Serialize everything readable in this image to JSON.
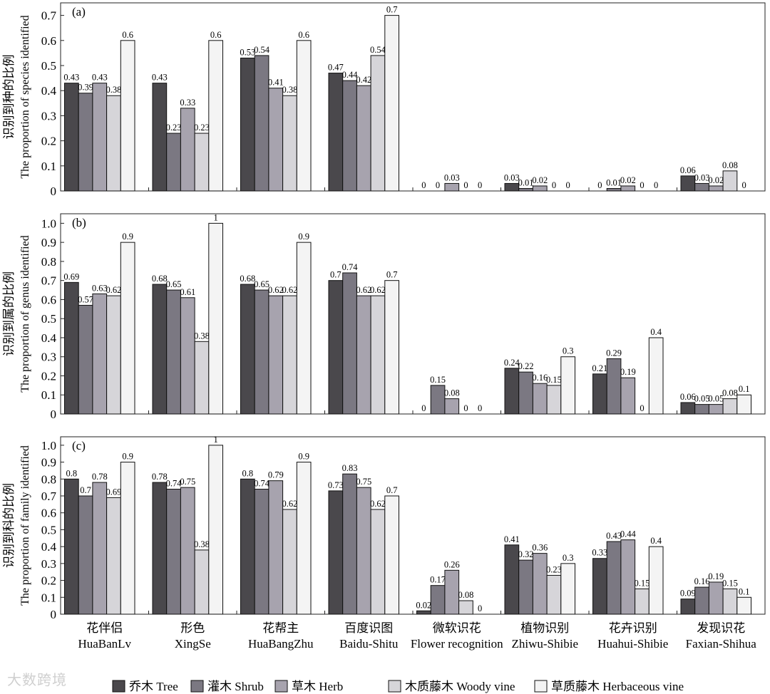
{
  "figure": {
    "categories_cn": [
      "花伴侣",
      "形色",
      "花帮主",
      "百度识图",
      "微软识花",
      "植物识别",
      "花卉识别",
      "发现识花"
    ],
    "categories_en": [
      "HuaBanLv",
      "XingSe",
      "HuaBangZhu",
      "Baidu-Shitu",
      "Flower recognition",
      "Zhiwu-Shibie",
      "Huahui-Shibie",
      "Faxian-Shihua"
    ],
    "legend": [
      {
        "label": "乔木 Tree",
        "color": "#4a484c"
      },
      {
        "label": "灌木 Shrub",
        "color": "#7b7882"
      },
      {
        "label": "草木 Herb",
        "color": "#a7a3ae"
      },
      {
        "label": "木质藤木 Woody vine",
        "color": "#d6d5d9"
      },
      {
        "label": "草质藤木 Herbaceous vine",
        "color": "#f4f4f4"
      }
    ],
    "watermark": "大数跨境"
  },
  "chart_data": [
    {
      "type": "bar",
      "panel": "(a)",
      "ylabel_cn": "识别到种的比例",
      "ylabel_en": "The proportion of species identified",
      "ylim": [
        0,
        0.75
      ],
      "yticks": [
        "0",
        "0.1",
        "0.2",
        "0.3",
        "0.4",
        "0.5",
        "0.6",
        "0.7"
      ],
      "series": [
        {
          "name": "乔木 Tree",
          "values": [
            0.43,
            0.43,
            0.53,
            0.47,
            0,
            0.03,
            0,
            0.06
          ]
        },
        {
          "name": "灌木 Shrub",
          "values": [
            0.39,
            0.23,
            0.54,
            0.44,
            0,
            0.01,
            0.01,
            0.03
          ]
        },
        {
          "name": "草木 Herb",
          "values": [
            0.43,
            0.33,
            0.41,
            0.42,
            0.03,
            0.02,
            0.02,
            0.02
          ]
        },
        {
          "name": "木质藤木 Woody vine",
          "values": [
            0.38,
            0.23,
            0.38,
            0.54,
            0,
            0,
            0,
            0.08
          ]
        },
        {
          "name": "草质藤木 Herbaceous vine",
          "values": [
            0.6,
            0.6,
            0.6,
            0.7,
            0,
            0,
            0,
            0
          ]
        }
      ]
    },
    {
      "type": "bar",
      "panel": "(b)",
      "ylabel_cn": "识别到属的比例",
      "ylabel_en": "The proportion of genus identified",
      "ylim": [
        0,
        1.05
      ],
      "yticks": [
        "0",
        "0.1",
        "0.2",
        "0.3",
        "0.4",
        "0.5",
        "0.6",
        "0.7",
        "0.8",
        "0.9",
        "1.0"
      ],
      "series": [
        {
          "name": "乔木 Tree",
          "values": [
            0.69,
            0.68,
            0.68,
            0.7,
            0,
            0.24,
            0.21,
            0.06
          ]
        },
        {
          "name": "灌木 Shrub",
          "values": [
            0.57,
            0.65,
            0.65,
            0.74,
            0.15,
            0.22,
            0.29,
            0.05
          ]
        },
        {
          "name": "草木 Herb",
          "values": [
            0.63,
            0.61,
            0.62,
            0.62,
            0.08,
            0.16,
            0.19,
            0.05
          ]
        },
        {
          "name": "木质藤木 Woody vine",
          "values": [
            0.62,
            0.38,
            0.62,
            0.62,
            0,
            0.15,
            0,
            0.08
          ]
        },
        {
          "name": "草质藤木 Herbaceous vine",
          "values": [
            0.9,
            1,
            0.9,
            0.7,
            0,
            0.3,
            0.4,
            0.1
          ]
        }
      ]
    },
    {
      "type": "bar",
      "panel": "(c)",
      "ylabel_cn": "识别到科的比例",
      "ylabel_en": "The proportion of family identified",
      "ylim": [
        0,
        1.05
      ],
      "yticks": [
        "0",
        "0.1",
        "0.2",
        "0.3",
        "0.4",
        "0.5",
        "0.6",
        "0.7",
        "0.8",
        "0.9",
        "1.0"
      ],
      "series": [
        {
          "name": "乔木 Tree",
          "values": [
            0.8,
            0.78,
            0.8,
            0.73,
            0.02,
            0.41,
            0.33,
            0.09
          ]
        },
        {
          "name": "灌木 Shrub",
          "values": [
            0.7,
            0.74,
            0.74,
            0.83,
            0.17,
            0.32,
            0.43,
            0.16
          ]
        },
        {
          "name": "草木 Herb",
          "values": [
            0.78,
            0.75,
            0.79,
            0.75,
            0.26,
            0.36,
            0.44,
            0.19
          ]
        },
        {
          "name": "木质藤木 Woody vine",
          "values": [
            0.69,
            0.38,
            0.62,
            0.62,
            0.08,
            0.23,
            0.15,
            0.15
          ]
        },
        {
          "name": "草质藤木 Herbaceous vine",
          "values": [
            0.9,
            1,
            0.9,
            0.7,
            0,
            0.3,
            0.4,
            0.1
          ]
        }
      ]
    }
  ]
}
